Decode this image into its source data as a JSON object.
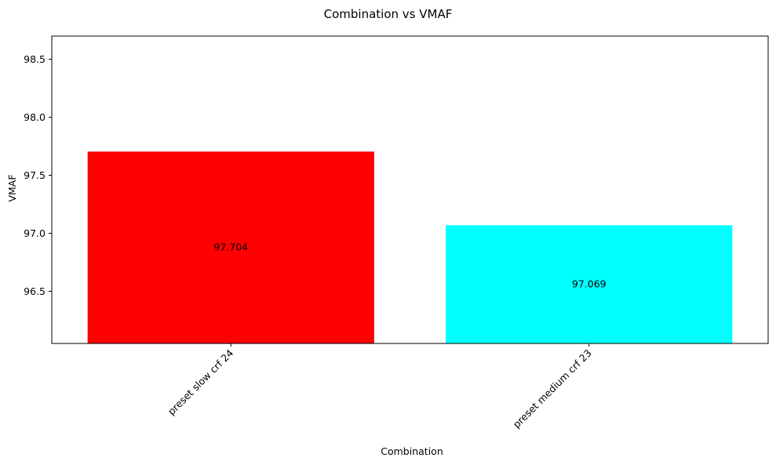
{
  "chart_data": {
    "type": "bar",
    "title": "Combination vs VMAF",
    "xlabel": "Combination",
    "ylabel": "VMAF",
    "categories": [
      "preset slow crf 24",
      "preset medium crf 23"
    ],
    "values": [
      97.704,
      97.069
    ],
    "value_labels": [
      "97.704",
      "97.069"
    ],
    "colors": [
      "#ff0000",
      "#00ffff"
    ],
    "ylim": [
      96.05,
      98.7
    ],
    "yticks": [
      96.5,
      97.0,
      97.5,
      98.0,
      98.5
    ],
    "ytick_labels": [
      "96.5",
      "97.0",
      "97.5",
      "98.0",
      "98.5"
    ],
    "grid": false,
    "legend": "none"
  }
}
